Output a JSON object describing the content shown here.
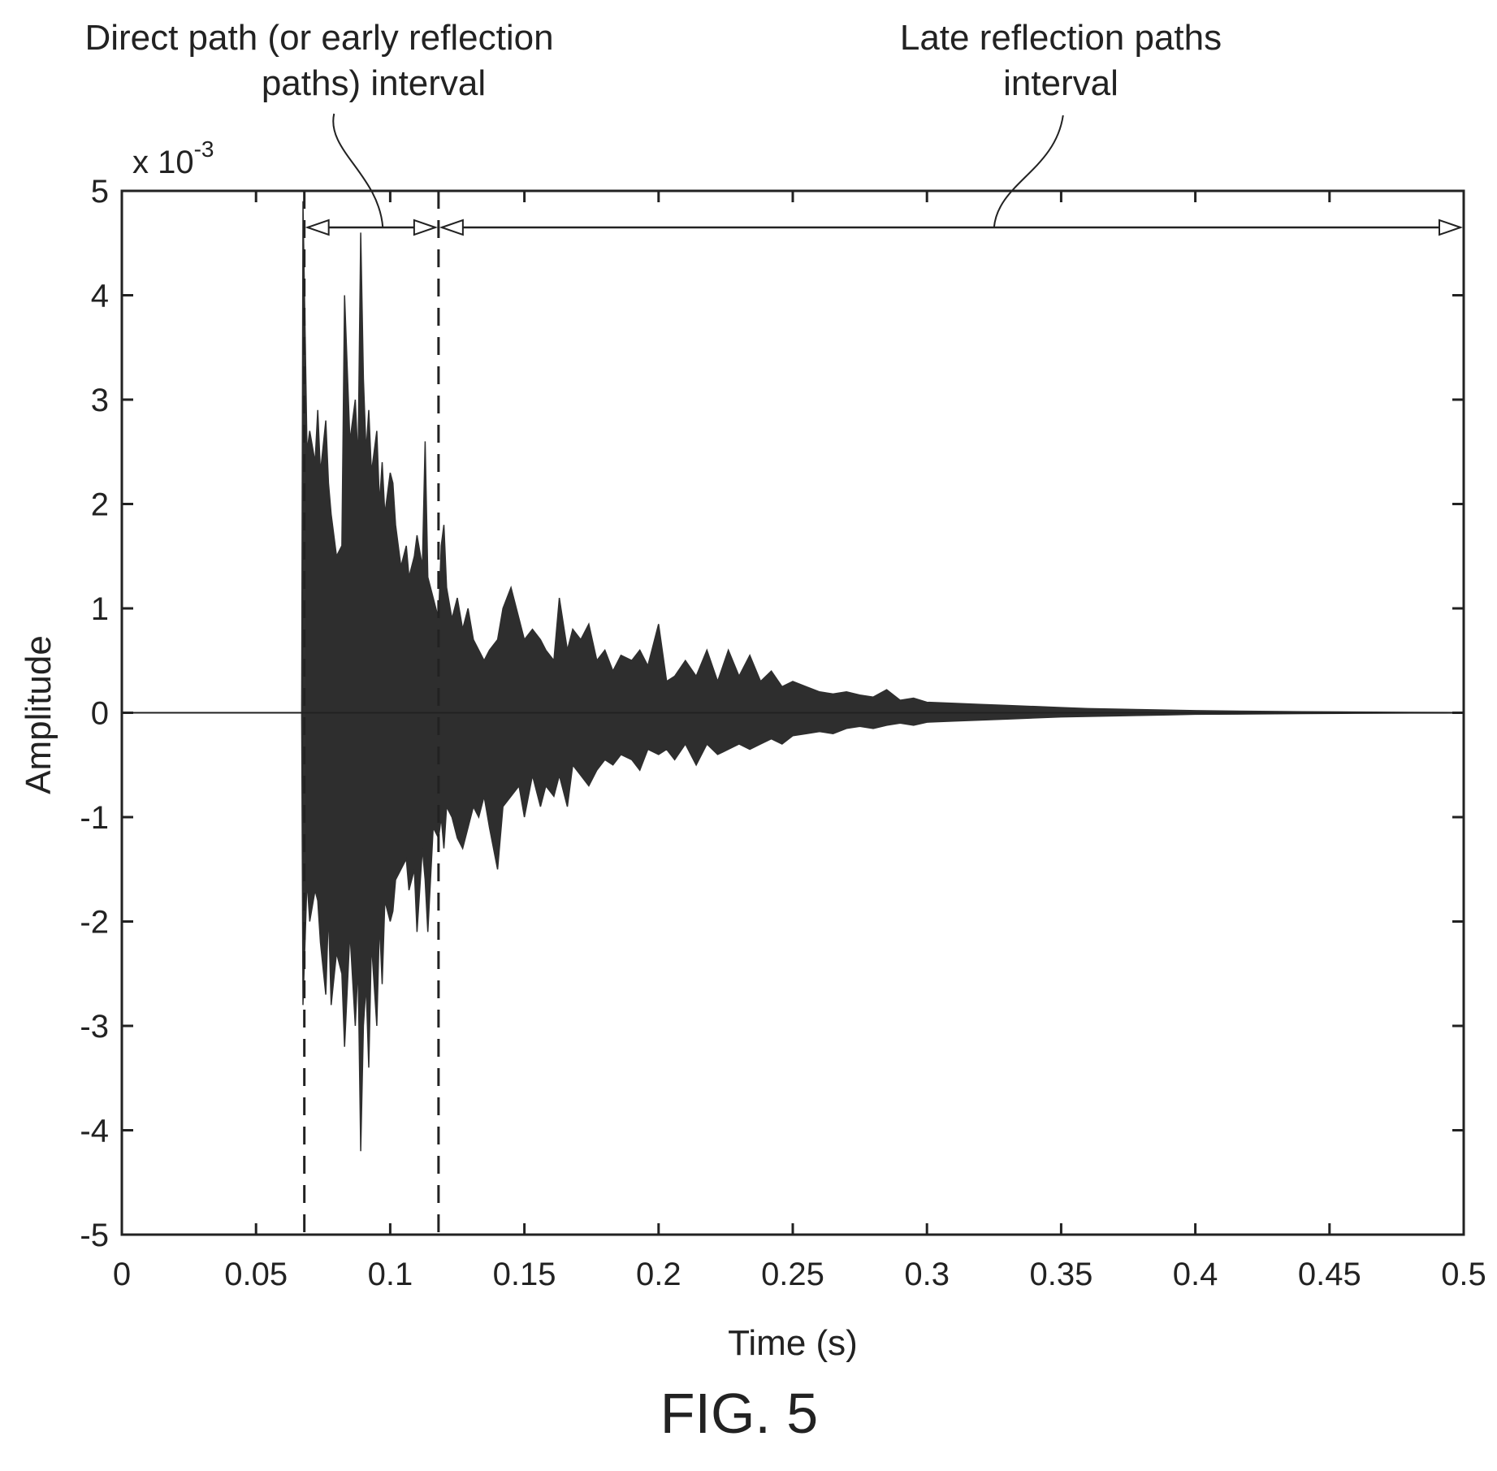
{
  "chart_data": {
    "type": "line",
    "xlabel": "Time (s)",
    "ylabel": "Amplitude",
    "y_scale_label": "x 10",
    "y_scale_exponent": "-3",
    "xlim": [
      0,
      0.5
    ],
    "ylim": [
      -5,
      5
    ],
    "xticks": [
      "0",
      "0.05",
      "0.1",
      "0.15",
      "0.2",
      "0.25",
      "0.3",
      "0.35",
      "0.4",
      "0.45",
      "0.5"
    ],
    "yticks": [
      "5",
      "4",
      "3",
      "2",
      "1",
      "0",
      "-1",
      "-2",
      "-3",
      "-4",
      "-5"
    ],
    "grid": false,
    "series": [
      {
        "envelope_upper": {
          "x": [
            0.0,
            0.067,
            0.0675,
            0.069,
            0.07,
            0.072,
            0.073,
            0.074,
            0.076,
            0.077,
            0.078,
            0.08,
            0.082,
            0.083,
            0.085,
            0.087,
            0.088,
            0.089,
            0.09,
            0.091,
            0.092,
            0.093,
            0.095,
            0.096,
            0.097,
            0.098,
            0.1,
            0.101,
            0.102,
            0.104,
            0.106,
            0.107,
            0.109,
            0.11,
            0.112,
            0.113,
            0.114,
            0.116,
            0.118,
            0.119,
            0.12,
            0.121,
            0.123,
            0.125,
            0.127,
            0.129,
            0.131,
            0.133,
            0.135,
            0.137,
            0.14,
            0.142,
            0.145,
            0.148,
            0.15,
            0.153,
            0.156,
            0.158,
            0.161,
            0.163,
            0.166,
            0.168,
            0.171,
            0.174,
            0.177,
            0.18,
            0.183,
            0.186,
            0.19,
            0.193,
            0.196,
            0.2,
            0.203,
            0.206,
            0.21,
            0.214,
            0.218,
            0.222,
            0.226,
            0.23,
            0.234,
            0.238,
            0.242,
            0.246,
            0.25,
            0.255,
            0.26,
            0.265,
            0.27,
            0.275,
            0.28,
            0.285,
            0.29,
            0.295,
            0.3,
            0.31,
            0.32,
            0.33,
            0.34,
            0.35,
            0.36,
            0.37,
            0.38,
            0.39,
            0.4,
            0.42,
            0.44,
            0.46,
            0.48,
            0.5
          ],
          "y": [
            0.0,
            0.0,
            4.9,
            2.5,
            2.7,
            2.4,
            2.9,
            2.3,
            2.8,
            2.2,
            1.9,
            1.5,
            1.6,
            4.0,
            2.6,
            3.0,
            2.4,
            4.6,
            3.2,
            2.5,
            2.9,
            2.3,
            2.7,
            2.0,
            2.4,
            1.9,
            2.3,
            2.2,
            1.8,
            1.4,
            1.6,
            1.3,
            1.5,
            1.7,
            1.4,
            2.6,
            1.3,
            1.1,
            0.9,
            1.6,
            1.8,
            1.2,
            0.9,
            1.1,
            0.8,
            1.0,
            0.7,
            0.6,
            0.5,
            0.6,
            0.7,
            1.0,
            1.2,
            0.9,
            0.7,
            0.8,
            0.7,
            0.6,
            0.5,
            1.1,
            0.6,
            0.8,
            0.7,
            0.85,
            0.5,
            0.6,
            0.4,
            0.55,
            0.5,
            0.6,
            0.45,
            0.85,
            0.3,
            0.35,
            0.5,
            0.35,
            0.6,
            0.3,
            0.6,
            0.35,
            0.55,
            0.3,
            0.4,
            0.25,
            0.3,
            0.25,
            0.2,
            0.18,
            0.2,
            0.17,
            0.15,
            0.22,
            0.12,
            0.14,
            0.1,
            0.09,
            0.08,
            0.07,
            0.06,
            0.05,
            0.04,
            0.035,
            0.03,
            0.025,
            0.02,
            0.015,
            0.01,
            0.007,
            0.004,
            0.002
          ]
        },
        "envelope_lower": {
          "x": [
            0.0,
            0.067,
            0.0675,
            0.069,
            0.07,
            0.072,
            0.073,
            0.074,
            0.076,
            0.077,
            0.078,
            0.08,
            0.082,
            0.083,
            0.085,
            0.087,
            0.088,
            0.089,
            0.09,
            0.091,
            0.092,
            0.093,
            0.095,
            0.096,
            0.097,
            0.098,
            0.1,
            0.101,
            0.102,
            0.104,
            0.106,
            0.107,
            0.109,
            0.11,
            0.112,
            0.113,
            0.114,
            0.116,
            0.118,
            0.119,
            0.12,
            0.121,
            0.123,
            0.125,
            0.127,
            0.129,
            0.131,
            0.133,
            0.135,
            0.137,
            0.14,
            0.142,
            0.145,
            0.148,
            0.15,
            0.153,
            0.156,
            0.158,
            0.161,
            0.163,
            0.166,
            0.168,
            0.171,
            0.174,
            0.177,
            0.18,
            0.183,
            0.186,
            0.19,
            0.193,
            0.196,
            0.2,
            0.203,
            0.206,
            0.21,
            0.214,
            0.218,
            0.222,
            0.226,
            0.23,
            0.234,
            0.238,
            0.242,
            0.246,
            0.25,
            0.255,
            0.26,
            0.265,
            0.27,
            0.275,
            0.28,
            0.285,
            0.29,
            0.295,
            0.3,
            0.31,
            0.32,
            0.33,
            0.34,
            0.35,
            0.36,
            0.37,
            0.38,
            0.39,
            0.4,
            0.42,
            0.44,
            0.46,
            0.48,
            0.5
          ],
          "y": [
            0.0,
            0.0,
            -2.8,
            -1.6,
            -2.0,
            -1.7,
            -1.8,
            -2.2,
            -2.7,
            -1.9,
            -2.8,
            -2.3,
            -2.5,
            -3.2,
            -2.1,
            -3.0,
            -2.4,
            -4.2,
            -3.0,
            -2.6,
            -3.4,
            -2.2,
            -3.0,
            -2.0,
            -2.6,
            -1.8,
            -2.0,
            -1.9,
            -1.6,
            -1.5,
            -1.4,
            -1.7,
            -1.5,
            -2.1,
            -1.3,
            -1.6,
            -2.1,
            -1.1,
            -1.2,
            -1.0,
            -1.3,
            -0.9,
            -1.0,
            -1.2,
            -1.3,
            -1.1,
            -0.9,
            -1.0,
            -0.8,
            -1.1,
            -1.5,
            -0.9,
            -0.8,
            -0.7,
            -1.0,
            -0.6,
            -0.9,
            -0.7,
            -0.8,
            -0.6,
            -0.9,
            -0.5,
            -0.6,
            -0.7,
            -0.55,
            -0.45,
            -0.5,
            -0.4,
            -0.45,
            -0.55,
            -0.35,
            -0.4,
            -0.35,
            -0.45,
            -0.3,
            -0.5,
            -0.3,
            -0.4,
            -0.35,
            -0.3,
            -0.35,
            -0.3,
            -0.25,
            -0.3,
            -0.22,
            -0.2,
            -0.18,
            -0.2,
            -0.15,
            -0.13,
            -0.15,
            -0.12,
            -0.1,
            -0.12,
            -0.09,
            -0.08,
            -0.07,
            -0.06,
            -0.05,
            -0.04,
            -0.035,
            -0.03,
            -0.025,
            -0.02,
            -0.015,
            -0.012,
            -0.008,
            -0.005,
            -0.003,
            -0.002
          ]
        }
      }
    ],
    "markers": {
      "vertical_dashed_lines_x": [
        0.068,
        0.118
      ]
    },
    "annotations": [
      {
        "line1": "Direct path (or early reflection",
        "line2": "paths) interval",
        "interval": [
          0.068,
          0.118
        ]
      },
      {
        "line1": "Late reflection paths",
        "line2": "interval",
        "interval": [
          0.118,
          0.5
        ]
      }
    ]
  },
  "caption": "FIG. 5",
  "colors": {
    "ink": "#222222",
    "fill": "#2e2e2e",
    "background": "#ffffff"
  }
}
